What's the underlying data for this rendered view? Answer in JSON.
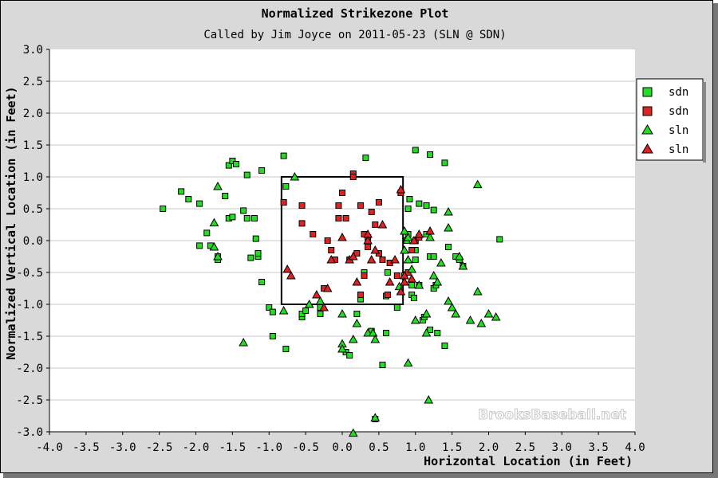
{
  "chart_data": {
    "type": "scatter",
    "title": "Normalized Strikezone Plot",
    "subtitle": "Called by Jim Joyce on 2011-05-23 (SLN @ SDN)",
    "xlabel": "Horizontal Location (in Feet)",
    "ylabel": "Normalized Vertical Location (in Feet)",
    "xlim": [
      -4.0,
      4.0
    ],
    "ylim": [
      -3.0,
      3.0
    ],
    "x_ticks": [
      "-4.0",
      "-3.5",
      "-3.0",
      "-2.5",
      "-2.0",
      "-1.5",
      "-1.0",
      "-0.5",
      "0.0",
      "0.5",
      "1.0",
      "1.5",
      "2.0",
      "2.5",
      "3.0",
      "3.5",
      "4.0"
    ],
    "y_ticks": [
      "3.0",
      "2.5",
      "2.0",
      "1.5",
      "1.0",
      "0.5",
      "0.0",
      "-0.5",
      "-1.0",
      "-1.5",
      "-2.0",
      "-2.5",
      "-3.0"
    ],
    "grid": "horizontal",
    "legend_position": "right",
    "strike_zone": {
      "x": [
        -0.83,
        0.83
      ],
      "y": [
        -1.0,
        1.0
      ]
    },
    "watermark": "BrooksBaseball.net",
    "series": [
      {
        "name": "sdn",
        "marker": "square",
        "color": "#22dd22",
        "points": [
          [
            -2.45,
            0.5
          ],
          [
            -2.2,
            0.77
          ],
          [
            -2.1,
            0.65
          ],
          [
            -1.95,
            0.58
          ],
          [
            -1.85,
            0.12
          ],
          [
            -1.8,
            -0.08
          ],
          [
            -1.95,
            -0.08
          ],
          [
            -1.7,
            -0.25
          ],
          [
            -1.7,
            -0.3
          ],
          [
            -1.6,
            0.7
          ],
          [
            -1.55,
            0.35
          ],
          [
            -1.5,
            0.37
          ],
          [
            -1.55,
            1.18
          ],
          [
            -1.5,
            1.25
          ],
          [
            -1.45,
            1.2
          ],
          [
            -1.35,
            0.47
          ],
          [
            -1.3,
            0.35
          ],
          [
            -1.3,
            1.03
          ],
          [
            -1.25,
            -0.27
          ],
          [
            -1.2,
            0.35
          ],
          [
            -1.18,
            0.03
          ],
          [
            -1.15,
            -0.25
          ],
          [
            -1.15,
            -0.2
          ],
          [
            -1.1,
            -0.65
          ],
          [
            -1.1,
            1.1
          ],
          [
            -1.0,
            -1.05
          ],
          [
            -0.95,
            -1.5
          ],
          [
            -0.95,
            -1.12
          ],
          [
            -0.8,
            1.33
          ],
          [
            -0.77,
            0.85
          ],
          [
            -0.77,
            -1.7
          ],
          [
            -0.55,
            -1.2
          ],
          [
            -0.55,
            -1.15
          ],
          [
            -0.5,
            -1.1
          ],
          [
            -0.3,
            -1.05
          ],
          [
            -0.3,
            -1.15
          ],
          [
            0.05,
            -1.75
          ],
          [
            0.1,
            -1.8
          ],
          [
            0.2,
            -1.15
          ],
          [
            0.25,
            -0.92
          ],
          [
            0.3,
            -0.5
          ],
          [
            0.32,
            1.3
          ],
          [
            0.4,
            -1.42
          ],
          [
            0.45,
            -2.8
          ],
          [
            0.55,
            -1.95
          ],
          [
            0.6,
            -1.45
          ],
          [
            0.62,
            -0.5
          ],
          [
            0.75,
            -1.05
          ],
          [
            0.6,
            -0.87
          ],
          [
            0.85,
            -0.55
          ],
          [
            0.88,
            0.0
          ],
          [
            0.9,
            0.1
          ],
          [
            0.9,
            0.5
          ],
          [
            0.92,
            0.65
          ],
          [
            0.95,
            -0.7
          ],
          [
            0.95,
            -0.85
          ],
          [
            0.98,
            -0.9
          ],
          [
            1.0,
            -0.15
          ],
          [
            1.0,
            -0.3
          ],
          [
            1.0,
            1.42
          ],
          [
            1.05,
            0.58
          ],
          [
            1.05,
            -0.7
          ],
          [
            1.1,
            -1.25
          ],
          [
            1.12,
            -1.2
          ],
          [
            1.15,
            0.1
          ],
          [
            1.15,
            0.55
          ],
          [
            1.2,
            1.35
          ],
          [
            1.2,
            -0.25
          ],
          [
            1.2,
            -1.4
          ],
          [
            1.25,
            0.48
          ],
          [
            1.25,
            -0.75
          ],
          [
            1.25,
            -0.25
          ],
          [
            1.28,
            -0.7
          ],
          [
            1.3,
            -1.45
          ],
          [
            1.4,
            1.22
          ],
          [
            1.4,
            -1.65
          ],
          [
            1.45,
            -0.1
          ],
          [
            1.55,
            -0.25
          ],
          [
            1.6,
            -0.3
          ],
          [
            1.65,
            -0.4
          ],
          [
            2.15,
            0.02
          ]
        ]
      },
      {
        "name": "sdn",
        "marker": "square",
        "color": "#dd2222",
        "points": [
          [
            -0.8,
            0.6
          ],
          [
            -0.55,
            0.27
          ],
          [
            -0.55,
            0.55
          ],
          [
            -0.4,
            0.1
          ],
          [
            -0.25,
            -0.75
          ],
          [
            -0.2,
            0.0
          ],
          [
            -0.15,
            -0.15
          ],
          [
            -0.1,
            -0.3
          ],
          [
            -0.05,
            0.35
          ],
          [
            -0.05,
            0.55
          ],
          [
            0.0,
            0.75
          ],
          [
            0.05,
            0.35
          ],
          [
            0.1,
            -0.3
          ],
          [
            0.15,
            1.05
          ],
          [
            0.15,
            1.0
          ],
          [
            0.2,
            -0.2
          ],
          [
            0.25,
            0.55
          ],
          [
            0.3,
            0.1
          ],
          [
            0.35,
            0.05
          ],
          [
            0.35,
            -0.1
          ],
          [
            0.4,
            0.45
          ],
          [
            0.45,
            0.25
          ],
          [
            0.5,
            0.6
          ],
          [
            0.5,
            -0.2
          ],
          [
            0.55,
            -0.3
          ],
          [
            0.62,
            -0.85
          ],
          [
            0.65,
            -0.35
          ],
          [
            0.75,
            -0.55
          ],
          [
            0.8,
            0.75
          ],
          [
            0.9,
            -0.5
          ],
          [
            0.95,
            -0.15
          ],
          [
            1.0,
            0.0
          ],
          [
            1.05,
            0.05
          ],
          [
            0.3,
            -0.55
          ],
          [
            0.25,
            -0.85
          ]
        ]
      },
      {
        "name": "sln",
        "marker": "triangle",
        "color": "#22dd22",
        "points": [
          [
            -1.7,
            0.85
          ],
          [
            -1.75,
            0.28
          ],
          [
            -1.75,
            -0.1
          ],
          [
            -1.7,
            -0.25
          ],
          [
            -1.35,
            -1.6
          ],
          [
            -0.8,
            -1.1
          ],
          [
            -0.45,
            -1.0
          ],
          [
            -0.3,
            -0.95
          ],
          [
            -0.65,
            1.0
          ],
          [
            0.0,
            -1.15
          ],
          [
            0.0,
            -1.62
          ],
          [
            0.0,
            -1.7
          ],
          [
            0.15,
            -1.55
          ],
          [
            0.2,
            -1.3
          ],
          [
            0.35,
            -1.45
          ],
          [
            0.42,
            -1.45
          ],
          [
            0.45,
            -1.55
          ],
          [
            0.15,
            -3.02
          ],
          [
            0.78,
            -0.72
          ],
          [
            0.85,
            0.15
          ],
          [
            0.85,
            -0.15
          ],
          [
            0.9,
            0.05
          ],
          [
            0.9,
            -0.3
          ],
          [
            0.95,
            -0.45
          ],
          [
            1.0,
            -1.25
          ],
          [
            1.05,
            -0.7
          ],
          [
            1.15,
            -1.15
          ],
          [
            1.18,
            -2.5
          ],
          [
            1.2,
            0.05
          ],
          [
            1.25,
            -0.55
          ],
          [
            1.3,
            -0.65
          ],
          [
            1.35,
            -0.35
          ],
          [
            1.45,
            0.45
          ],
          [
            1.45,
            0.2
          ],
          [
            1.45,
            -0.95
          ],
          [
            1.5,
            -1.05
          ],
          [
            1.55,
            -1.15
          ],
          [
            1.6,
            -0.25
          ],
          [
            1.65,
            -0.4
          ],
          [
            1.75,
            -1.25
          ],
          [
            1.85,
            0.88
          ],
          [
            1.85,
            -0.8
          ],
          [
            1.9,
            -1.3
          ],
          [
            2.0,
            -1.15
          ],
          [
            2.1,
            -1.2
          ],
          [
            0.9,
            -1.92
          ],
          [
            0.45,
            -2.78
          ],
          [
            1.15,
            -1.45
          ]
        ]
      },
      {
        "name": "sln",
        "marker": "triangle",
        "color": "#dd2222",
        "points": [
          [
            -0.75,
            -0.45
          ],
          [
            -0.7,
            -0.55
          ],
          [
            -0.35,
            -0.85
          ],
          [
            -0.2,
            -0.75
          ],
          [
            -0.15,
            -0.3
          ],
          [
            -0.25,
            -1.05
          ],
          [
            0.0,
            0.05
          ],
          [
            0.1,
            -0.3
          ],
          [
            0.15,
            -0.25
          ],
          [
            0.2,
            -0.65
          ],
          [
            0.35,
            0.1
          ],
          [
            0.35,
            0.0
          ],
          [
            0.4,
            -0.3
          ],
          [
            0.45,
            -0.15
          ],
          [
            0.55,
            0.25
          ],
          [
            0.65,
            -0.65
          ],
          [
            0.72,
            -0.3
          ],
          [
            0.8,
            -0.8
          ],
          [
            0.85,
            -0.55
          ],
          [
            0.85,
            -0.65
          ],
          [
            0.95,
            -0.6
          ],
          [
            0.98,
            0.0
          ],
          [
            1.05,
            0.1
          ],
          [
            1.2,
            0.15
          ],
          [
            0.8,
            0.8
          ]
        ]
      }
    ]
  }
}
